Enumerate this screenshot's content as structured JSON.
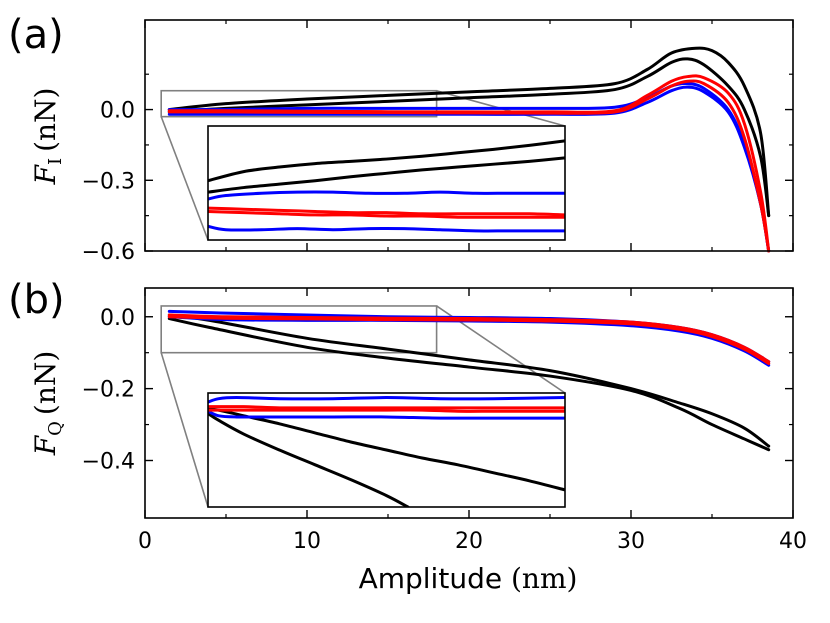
{
  "figure": {
    "x_axis": {
      "label_text": "Amplitude",
      "label_unit": "(nm)",
      "range": [
        0,
        40
      ],
      "ticks": [
        0,
        10,
        20,
        30,
        40
      ],
      "tick_labels": [
        "0",
        "10",
        "20",
        "30",
        "40"
      ]
    }
  },
  "chart_data": [
    {
      "type": "line",
      "panel_label": "(a)",
      "ylabel_symbol": "F",
      "ylabel_subscript": "I",
      "ylabel_unit": "(nN)",
      "xlabel": "",
      "xlim": [
        0,
        40
      ],
      "ylim": [
        -0.6,
        0.38
      ],
      "yticks": [
        0.0,
        -0.3,
        -0.6
      ],
      "ytick_labels": [
        "0.0",
        "−0.3",
        "−0.6"
      ],
      "series": [
        {
          "name": "black-upper",
          "color": "#000000",
          "x": [
            1.5,
            5,
            10,
            15,
            20,
            25,
            29,
            31,
            32.5,
            34,
            35,
            36,
            37,
            38,
            38.5
          ],
          "y": [
            0.0,
            0.025,
            0.045,
            0.06,
            0.075,
            0.09,
            0.11,
            0.17,
            0.24,
            0.26,
            0.25,
            0.2,
            0.1,
            -0.1,
            -0.45
          ]
        },
        {
          "name": "black-lower",
          "color": "#000000",
          "x": [
            1.5,
            5,
            10,
            15,
            20,
            25,
            29,
            31,
            32.5,
            33.5,
            34.5,
            36,
            37,
            38,
            38.5
          ],
          "y": [
            -0.01,
            0.005,
            0.02,
            0.035,
            0.05,
            0.065,
            0.085,
            0.14,
            0.2,
            0.215,
            0.19,
            0.1,
            0.0,
            -0.2,
            -0.45
          ]
        },
        {
          "name": "blue-upper",
          "color": "#0000ff",
          "x": [
            1.5,
            5,
            10,
            15,
            20,
            25,
            29,
            31,
            32.5,
            33.5,
            34.5,
            36,
            37,
            38,
            38.5
          ],
          "y": [
            0.0,
            0.0,
            0.005,
            0.005,
            0.005,
            0.005,
            0.01,
            0.05,
            0.1,
            0.11,
            0.09,
            0.0,
            -0.15,
            -0.4,
            -0.6
          ]
        },
        {
          "name": "blue-lower",
          "color": "#0000ff",
          "x": [
            1.5,
            5,
            10,
            15,
            20,
            25,
            29,
            31,
            32.5,
            33.5,
            34.5,
            36,
            37,
            38,
            38.5
          ],
          "y": [
            -0.02,
            -0.02,
            -0.02,
            -0.02,
            -0.02,
            -0.02,
            -0.015,
            0.03,
            0.08,
            0.095,
            0.075,
            -0.01,
            -0.16,
            -0.4,
            -0.6
          ]
        },
        {
          "name": "red-upper",
          "color": "#ff0000",
          "x": [
            1.5,
            5,
            10,
            15,
            20,
            25,
            29,
            31,
            32.5,
            33.5,
            34.5,
            36,
            37,
            38,
            38.5
          ],
          "y": [
            -0.005,
            -0.005,
            -0.007,
            -0.009,
            -0.01,
            -0.01,
            -0.005,
            0.06,
            0.12,
            0.14,
            0.135,
            0.07,
            -0.06,
            -0.35,
            -0.6
          ]
        },
        {
          "name": "red-lower",
          "color": "#ff0000",
          "x": [
            1.5,
            5,
            10,
            15,
            20,
            25,
            29,
            31,
            32.5,
            33.5,
            34.5,
            36,
            37,
            38,
            38.5
          ],
          "y": [
            -0.01,
            -0.01,
            -0.012,
            -0.013,
            -0.014,
            -0.015,
            -0.01,
            0.045,
            0.1,
            0.12,
            0.11,
            0.03,
            -0.12,
            -0.4,
            -0.6
          ]
        }
      ],
      "inset": {
        "source_xlim": [
          1,
          18
        ],
        "source_ylim": [
          -0.03,
          0.08
        ],
        "series": [
          {
            "name": "inset-black-upper",
            "color": "#000000",
            "x": [
              0,
              0.1,
              0.2,
              0.3,
              0.4,
              0.5,
              0.6,
              0.7,
              0.8,
              0.9,
              1.0
            ],
            "y": [
              0.52,
              0.6,
              0.64,
              0.67,
              0.69,
              0.71,
              0.735,
              0.765,
              0.795,
              0.83,
              0.87
            ]
          },
          {
            "name": "inset-black-lower",
            "color": "#000000",
            "x": [
              0,
              0.1,
              0.2,
              0.3,
              0.4,
              0.5,
              0.6,
              0.7,
              0.8,
              0.9,
              1.0
            ],
            "y": [
              0.42,
              0.46,
              0.49,
              0.52,
              0.555,
              0.585,
              0.615,
              0.64,
              0.665,
              0.69,
              0.72
            ]
          },
          {
            "name": "inset-blue-upper",
            "color": "#0000ff",
            "x": [
              0,
              0.05,
              0.15,
              0.25,
              0.35,
              0.45,
              0.55,
              0.65,
              0.75,
              0.85,
              1.0
            ],
            "y": [
              0.36,
              0.39,
              0.41,
              0.42,
              0.42,
              0.41,
              0.41,
              0.42,
              0.41,
              0.41,
              0.41
            ]
          },
          {
            "name": "inset-blue-lower",
            "color": "#0000ff",
            "x": [
              0,
              0.05,
              0.15,
              0.25,
              0.35,
              0.45,
              0.55,
              0.65,
              0.75,
              0.85,
              1.0
            ],
            "y": [
              0.12,
              0.09,
              0.09,
              0.1,
              0.09,
              0.1,
              0.1,
              0.09,
              0.08,
              0.08,
              0.08
            ]
          },
          {
            "name": "inset-red-upper",
            "color": "#ff0000",
            "x": [
              0,
              0.1,
              0.2,
              0.3,
              0.4,
              0.5,
              0.6,
              0.7,
              0.8,
              0.9,
              1.0
            ],
            "y": [
              0.28,
              0.27,
              0.26,
              0.25,
              0.24,
              0.24,
              0.23,
              0.23,
              0.23,
              0.23,
              0.22
            ]
          },
          {
            "name": "inset-red-lower",
            "color": "#ff0000",
            "x": [
              0,
              0.1,
              0.2,
              0.3,
              0.4,
              0.5,
              0.6,
              0.7,
              0.8,
              0.9,
              1.0
            ],
            "y": [
              0.25,
              0.24,
              0.23,
              0.22,
              0.22,
              0.21,
              0.21,
              0.2,
              0.2,
              0.2,
              0.2
            ]
          }
        ]
      }
    },
    {
      "type": "line",
      "panel_label": "(b)",
      "ylabel_symbol": "F",
      "ylabel_subscript": "Q",
      "ylabel_unit": "(nN)",
      "xlabel": "Amplitude (nm)",
      "xlim": [
        0,
        40
      ],
      "ylim": [
        -0.56,
        0.08
      ],
      "yticks": [
        0.0,
        -0.2,
        -0.4
      ],
      "ytick_labels": [
        "0.0",
        "−0.2",
        "−0.4"
      ],
      "series": [
        {
          "name": "black-upper",
          "color": "#000000",
          "x": [
            1.5,
            4,
            10,
            15,
            20,
            25,
            30,
            33,
            35,
            37,
            38.5
          ],
          "y": [
            0.005,
            -0.01,
            -0.06,
            -0.09,
            -0.12,
            -0.15,
            -0.2,
            -0.24,
            -0.27,
            -0.31,
            -0.36
          ]
        },
        {
          "name": "black-lower",
          "color": "#000000",
          "x": [
            1.5,
            4,
            10,
            15,
            20,
            25,
            30,
            33,
            35,
            37,
            38.5
          ],
          "y": [
            -0.005,
            -0.03,
            -0.085,
            -0.115,
            -0.14,
            -0.165,
            -0.205,
            -0.255,
            -0.3,
            -0.34,
            -0.37
          ]
        },
        {
          "name": "blue-upper",
          "color": "#0000ff",
          "x": [
            1.5,
            5,
            10,
            15,
            20,
            25,
            30,
            33,
            35,
            37,
            38.5
          ],
          "y": [
            0.015,
            0.01,
            0.005,
            0.0,
            -0.002,
            -0.005,
            -0.015,
            -0.03,
            -0.05,
            -0.085,
            -0.125
          ]
        },
        {
          "name": "blue-lower",
          "color": "#0000ff",
          "x": [
            1.5,
            5,
            10,
            15,
            20,
            25,
            30,
            33,
            35,
            37,
            38.5
          ],
          "y": [
            0.0,
            -0.008,
            -0.01,
            -0.01,
            -0.012,
            -0.015,
            -0.025,
            -0.04,
            -0.06,
            -0.095,
            -0.135
          ]
        },
        {
          "name": "red-upper",
          "color": "#ff0000",
          "x": [
            1.5,
            5,
            10,
            15,
            20,
            25,
            30,
            33,
            35,
            37,
            38.5
          ],
          "y": [
            0.005,
            0.0,
            -0.002,
            -0.004,
            -0.005,
            -0.008,
            -0.015,
            -0.03,
            -0.05,
            -0.085,
            -0.125
          ]
        },
        {
          "name": "red-lower",
          "color": "#ff0000",
          "x": [
            1.5,
            5,
            10,
            15,
            20,
            25,
            30,
            33,
            35,
            37,
            38.5
          ],
          "y": [
            0.0,
            -0.004,
            -0.006,
            -0.008,
            -0.009,
            -0.012,
            -0.02,
            -0.035,
            -0.055,
            -0.09,
            -0.13
          ]
        }
      ],
      "inset": {
        "source_xlim": [
          1,
          18
        ],
        "source_ylim": [
          -0.1,
          0.03
        ],
        "series": [
          {
            "name": "inset-black-upper",
            "color": "#000000",
            "x": [
              0,
              0.03,
              0.1,
              0.2,
              0.3,
              0.4,
              0.5,
              0.6,
              0.7,
              0.8,
              0.9,
              1.0
            ],
            "y": [
              0.86,
              0.85,
              0.8,
              0.73,
              0.65,
              0.57,
              0.5,
              0.43,
              0.37,
              0.3,
              0.23,
              0.15
            ]
          },
          {
            "name": "inset-black-lower",
            "color": "#000000",
            "x": [
              0,
              0.03,
              0.1,
              0.2,
              0.3,
              0.4,
              0.5,
              0.56
            ],
            "y": [
              0.82,
              0.76,
              0.64,
              0.5,
              0.37,
              0.24,
              0.1,
              0.0
            ]
          },
          {
            "name": "inset-blue-upper",
            "color": "#0000ff",
            "x": [
              0,
              0.03,
              0.08,
              0.2,
              0.35,
              0.5,
              0.65,
              0.8,
              1.0
            ],
            "y": [
              0.92,
              0.95,
              0.96,
              0.95,
              0.95,
              0.96,
              0.95,
              0.95,
              0.96
            ]
          },
          {
            "name": "inset-blue-lower",
            "color": "#0000ff",
            "x": [
              0,
              0.03,
              0.08,
              0.2,
              0.35,
              0.5,
              0.65,
              0.8,
              1.0
            ],
            "y": [
              0.84,
              0.8,
              0.79,
              0.79,
              0.79,
              0.79,
              0.78,
              0.78,
              0.78
            ]
          },
          {
            "name": "inset-red-upper",
            "color": "#ff0000",
            "x": [
              0,
              0.1,
              0.2,
              0.3,
              0.4,
              0.5,
              0.6,
              0.7,
              0.8,
              0.9,
              1.0
            ],
            "y": [
              0.88,
              0.88,
              0.87,
              0.87,
              0.87,
              0.87,
              0.87,
              0.87,
              0.87,
              0.87,
              0.87
            ]
          },
          {
            "name": "inset-red-lower",
            "color": "#ff0000",
            "x": [
              0,
              0.1,
              0.2,
              0.3,
              0.4,
              0.5,
              0.6,
              0.7,
              0.8,
              0.9,
              1.0
            ],
            "y": [
              0.85,
              0.85,
              0.85,
              0.85,
              0.85,
              0.85,
              0.85,
              0.84,
              0.84,
              0.84,
              0.84
            ]
          }
        ]
      }
    }
  ]
}
